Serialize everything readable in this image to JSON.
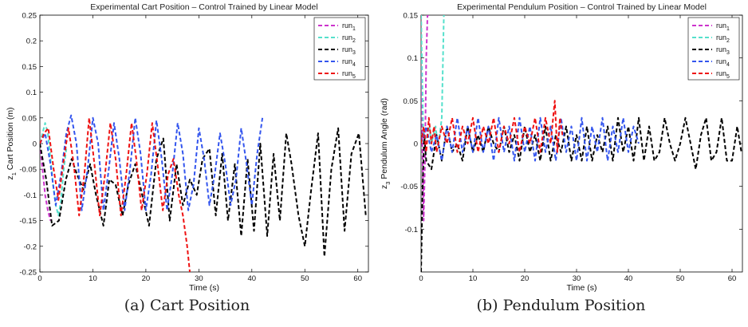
{
  "figure": {
    "caption_a": "(a) Cart Position",
    "caption_b": "(b) Pendulum Position"
  },
  "chart_data": [
    {
      "type": "line",
      "title": "Experimental Cart Position – Control Trained by Linear Model",
      "xlabel": "Time (s)",
      "ylabel_var": "z",
      "ylabel_sub": "1",
      "ylabel_rest": " Cart Position (m)",
      "xlim": [
        0,
        62
      ],
      "ylim": [
        -0.25,
        0.25
      ],
      "xticks": [
        "0",
        "10",
        "20",
        "30",
        "40",
        "50",
        "60"
      ],
      "yticks": [
        "-0.25",
        "-0.2",
        "-0.15",
        "-0.1",
        "-0.05",
        "0",
        "0.05",
        "0.1",
        "0.15",
        "0.2",
        "0.25"
      ],
      "legend_position": "top-right",
      "line_style": "dashed",
      "series": [
        {
          "name": "run",
          "sub": "1",
          "color": "#cc33cc",
          "x": [
            0,
            0.5,
            1.0,
            1.5,
            2.0
          ],
          "y": [
            0.0,
            -0.05,
            -0.1,
            -0.13,
            -0.15
          ]
        },
        {
          "name": "run",
          "sub": "2",
          "color": "#55e0cc",
          "x": [
            0,
            0.5,
            1.0,
            1.5,
            2.0,
            2.5,
            3.0,
            3.5,
            4.0,
            4.5,
            5.0
          ],
          "y": [
            0.0,
            0.02,
            0.04,
            0.02,
            -0.03,
            -0.08,
            -0.12,
            -0.14,
            -0.11,
            -0.05,
            -0.01
          ]
        },
        {
          "name": "run",
          "sub": "3",
          "color": "#000000",
          "x": [
            0,
            1.2,
            2.3,
            3.6,
            4.9,
            6.0,
            7.0,
            8.2,
            9.5,
            10.6,
            12.0,
            13.1,
            14.3,
            15.6,
            16.7,
            18.0,
            19.3,
            20.6,
            22.0,
            23.3,
            24.5,
            25.8,
            27.0,
            28.3,
            29.6,
            30.7,
            32.0,
            33.2,
            34.4,
            35.5,
            36.8,
            38.0,
            39.2,
            40.4,
            41.6,
            42.9,
            44.1,
            45.3,
            46.5,
            47.5,
            48.8,
            50.0,
            51.2,
            52.5,
            53.7,
            55.0,
            56.3,
            57.5,
            58.8,
            60.2,
            61.5
          ],
          "y": [
            0.0,
            -0.07,
            -0.16,
            -0.15,
            -0.07,
            -0.03,
            -0.06,
            -0.09,
            -0.04,
            -0.1,
            -0.16,
            -0.07,
            -0.08,
            -0.14,
            -0.08,
            -0.04,
            -0.1,
            -0.16,
            -0.03,
            0.01,
            -0.15,
            -0.04,
            -0.12,
            -0.07,
            -0.1,
            -0.03,
            -0.01,
            -0.14,
            -0.02,
            -0.15,
            -0.04,
            -0.18,
            -0.03,
            -0.17,
            0.0,
            -0.18,
            -0.02,
            -0.15,
            0.02,
            -0.04,
            -0.14,
            -0.2,
            -0.09,
            0.02,
            -0.22,
            -0.05,
            0.03,
            -0.17,
            -0.02,
            0.02,
            -0.14
          ]
        },
        {
          "name": "run",
          "sub": "4",
          "color": "#3355ee",
          "x": [
            0,
            1.0,
            2.0,
            3.0,
            4.0,
            5.0,
            5.9,
            6.9,
            7.9,
            9.0,
            10.0,
            11.0,
            12.0,
            13.0,
            14.0,
            15.0,
            16.0,
            17.0,
            18.0,
            19.0,
            20.0,
            21.0,
            22.0,
            23.0,
            24.0,
            25.0,
            26.0,
            27.0,
            28.0,
            29.0,
            30.0,
            31.0,
            32.0,
            33.0,
            34.0,
            35.0,
            36.0,
            37.0,
            38.0,
            39.0,
            40.0,
            41.0,
            42.0
          ],
          "y": [
            0.0,
            0.02,
            -0.04,
            -0.12,
            -0.06,
            0.02,
            0.055,
            0.0,
            -0.13,
            -0.05,
            0.05,
            0.0,
            -0.13,
            -0.05,
            0.04,
            -0.03,
            -0.13,
            -0.05,
            0.05,
            -0.02,
            -0.13,
            -0.06,
            0.045,
            -0.03,
            -0.13,
            -0.06,
            0.04,
            -0.02,
            -0.13,
            -0.08,
            0.03,
            -0.03,
            -0.12,
            -0.06,
            0.02,
            -0.04,
            -0.12,
            -0.07,
            0.03,
            -0.04,
            -0.12,
            -0.02,
            0.05
          ]
        },
        {
          "name": "run",
          "sub": "5",
          "color": "#ee1111",
          "x": [
            0,
            0.8,
            1.6,
            2.6,
            3.5,
            4.4,
            5.4,
            6.4,
            7.4,
            8.4,
            9.3,
            10.3,
            11.3,
            12.3,
            13.3,
            14.3,
            15.3,
            16.3,
            17.3,
            18.2,
            19.2,
            20.2,
            21.2,
            22.2,
            23.2,
            24.2,
            25.2,
            26.2,
            27.0,
            27.8,
            28.4
          ],
          "y": [
            0.0,
            0.02,
            0.03,
            -0.05,
            -0.11,
            -0.04,
            0.03,
            -0.04,
            -0.14,
            -0.06,
            0.05,
            -0.04,
            -0.14,
            -0.06,
            0.04,
            -0.03,
            -0.14,
            -0.06,
            0.04,
            -0.03,
            -0.13,
            -0.06,
            0.04,
            -0.04,
            -0.13,
            -0.06,
            -0.03,
            -0.1,
            -0.14,
            -0.2,
            -0.26
          ]
        }
      ]
    },
    {
      "type": "line",
      "title": "Experimental Pendulum Position – Control Trained by Linear Model",
      "xlabel": "Time (s)",
      "ylabel_var": "z",
      "ylabel_sub": "3",
      "ylabel_rest": " Pendulum Angle (rad)",
      "xlim": [
        0,
        62
      ],
      "ylim": [
        -0.15,
        0.15
      ],
      "xticks": [
        "0",
        "10",
        "20",
        "30",
        "40",
        "50",
        "60"
      ],
      "yticks": [
        "-0.1",
        "-0.05",
        "0",
        "0.05",
        "0.1",
        "0.15"
      ],
      "legend_position": "top-right",
      "line_style": "dashed",
      "series": [
        {
          "name": "run",
          "sub": "1",
          "color": "#cc33cc",
          "x": [
            0,
            0.25,
            0.5,
            0.75,
            1.0,
            1.25,
            1.5
          ],
          "y": [
            0.15,
            0.0,
            -0.09,
            -0.02,
            0.1,
            0.15,
            0.15
          ]
        },
        {
          "name": "run",
          "sub": "2",
          "color": "#55e0cc",
          "x": [
            0,
            0.4,
            0.8,
            1.2,
            1.6,
            2.0,
            2.4,
            2.8,
            3.2,
            3.6,
            4.0,
            4.4
          ],
          "y": [
            0.15,
            0.02,
            0.0,
            0.01,
            0.02,
            0.0,
            0.01,
            0.02,
            0.0,
            0.01,
            0.03,
            0.15
          ]
        },
        {
          "name": "run",
          "sub": "3",
          "color": "#000000",
          "x": [
            0,
            0.3,
            0.6,
            1.0,
            2.0,
            3.0,
            4.0,
            5.0,
            6.0,
            7.0,
            8.0,
            9.0,
            10.0,
            11.0,
            12.0,
            13.0,
            14.0,
            15.0,
            16.0,
            17.0,
            18.0,
            19.0,
            20.0,
            21.0,
            22.0,
            23.0,
            24.0,
            25.0,
            26.0,
            27.0,
            28.0,
            29.0,
            30.0,
            31.0,
            32.0,
            33.0,
            34.0,
            35.0,
            36.0,
            37.0,
            38.0,
            39.0,
            40.0,
            41.0,
            42.0,
            43.0,
            44.0,
            45.0,
            46.0,
            47.0,
            48.0,
            49.0,
            50.0,
            51.0,
            52.0,
            53.0,
            54.0,
            55.0,
            56.0,
            57.0,
            58.0,
            59.0,
            60.0,
            61.0,
            61.8
          ],
          "y": [
            -0.15,
            -0.05,
            0.01,
            -0.02,
            -0.03,
            0.01,
            -0.02,
            0.02,
            -0.01,
            0.0,
            -0.02,
            0.02,
            -0.01,
            0.01,
            -0.01,
            0.02,
            0.0,
            -0.01,
            0.02,
            -0.01,
            0.01,
            -0.02,
            0.02,
            -0.01,
            0.01,
            -0.02,
            0.02,
            -0.02,
            0.01,
            -0.01,
            0.02,
            -0.02,
            0.01,
            -0.02,
            0.02,
            -0.02,
            0.01,
            -0.01,
            0.02,
            -0.02,
            0.03,
            -0.01,
            0.02,
            -0.02,
            0.03,
            -0.02,
            0.02,
            -0.02,
            -0.01,
            0.03,
            0.0,
            -0.02,
            0.0,
            0.03,
            0.0,
            -0.03,
            0.01,
            0.03,
            -0.02,
            -0.01,
            0.03,
            -0.02,
            -0.02,
            0.02,
            -0.01
          ]
        },
        {
          "name": "run",
          "sub": "4",
          "color": "#3355ee",
          "x": [
            0,
            1.0,
            2.0,
            3.0,
            4.0,
            5.0,
            6.0,
            7.0,
            8.0,
            9.0,
            10.0,
            11.0,
            12.0,
            13.0,
            14.0,
            15.0,
            16.0,
            17.0,
            18.0,
            19.0,
            20.0,
            21.0,
            22.0,
            23.0,
            24.0,
            25.0,
            26.0,
            27.0,
            28.0,
            29.0,
            30.0,
            31.0,
            32.0,
            33.0,
            34.0,
            35.0,
            36.0,
            37.0,
            38.0,
            39.0,
            40.0,
            41.0,
            42.0
          ],
          "y": [
            0.0,
            0.02,
            -0.01,
            0.01,
            -0.02,
            0.02,
            -0.01,
            0.03,
            -0.01,
            0.02,
            -0.01,
            0.03,
            -0.01,
            0.02,
            -0.02,
            0.03,
            -0.01,
            0.02,
            -0.02,
            0.03,
            -0.01,
            0.02,
            -0.02,
            0.03,
            -0.01,
            0.02,
            -0.02,
            0.03,
            -0.01,
            0.02,
            -0.02,
            0.03,
            -0.02,
            0.02,
            -0.01,
            0.03,
            -0.02,
            0.02,
            -0.01,
            0.03,
            -0.01,
            0.02,
            0.0
          ]
        },
        {
          "name": "run",
          "sub": "5",
          "color": "#ee1111",
          "x": [
            0,
            0.5,
            1.0,
            1.5,
            2.0,
            2.5,
            3.0,
            4.0,
            5.0,
            6.0,
            7.0,
            8.0,
            9.0,
            10.0,
            11.0,
            12.0,
            13.0,
            14.0,
            15.0,
            16.0,
            17.0,
            18.0,
            19.0,
            20.0,
            21.0,
            22.0,
            23.0,
            24.0,
            25.0,
            25.8,
            26.3,
            26.8,
            27.3
          ],
          "y": [
            0.0,
            0.02,
            -0.01,
            0.03,
            0.0,
            0.02,
            -0.01,
            0.02,
            0.0,
            0.03,
            -0.01,
            0.02,
            0.0,
            0.03,
            -0.01,
            0.02,
            0.0,
            0.03,
            -0.01,
            0.02,
            0.0,
            0.03,
            -0.01,
            0.02,
            0.0,
            0.03,
            -0.01,
            0.03,
            0.0,
            0.05,
            -0.01,
            0.03,
            0.01
          ]
        }
      ]
    }
  ]
}
